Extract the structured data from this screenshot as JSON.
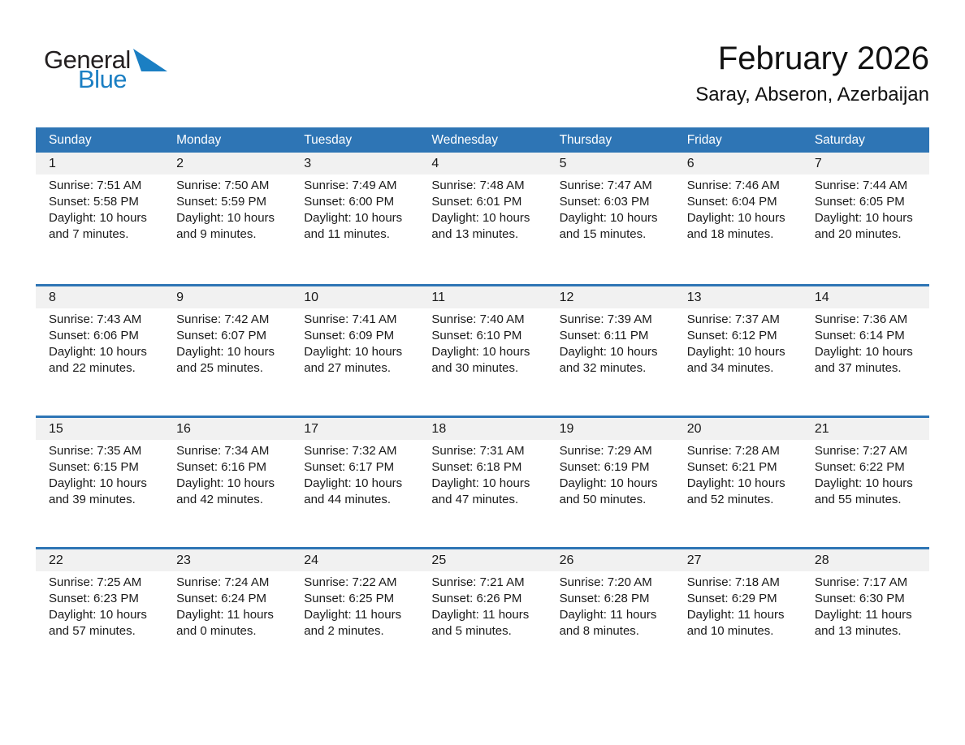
{
  "brand": {
    "part1": "General",
    "part2": "Blue"
  },
  "header": {
    "title": "February 2026",
    "location": "Saray, Abseron, Azerbaijan"
  },
  "weekdays": [
    "Sunday",
    "Monday",
    "Tuesday",
    "Wednesday",
    "Thursday",
    "Friday",
    "Saturday"
  ],
  "labels": {
    "sunrise": "Sunrise:",
    "sunset": "Sunset:",
    "daylight": "Daylight:",
    "hours": "hours",
    "and": "and",
    "minutes": "minutes."
  },
  "colors": {
    "header_bg": "#2e75b5",
    "separator": "#2e75b5",
    "band_bg": "#f1f1f1",
    "brand_blue": "#1b7fc3"
  },
  "weeks": [
    [
      {
        "day": 1,
        "sunrise": "7:51 AM",
        "sunset": "5:58 PM",
        "daylight_hours": 10,
        "daylight_minutes": 7
      },
      {
        "day": 2,
        "sunrise": "7:50 AM",
        "sunset": "5:59 PM",
        "daylight_hours": 10,
        "daylight_minutes": 9
      },
      {
        "day": 3,
        "sunrise": "7:49 AM",
        "sunset": "6:00 PM",
        "daylight_hours": 10,
        "daylight_minutes": 11
      },
      {
        "day": 4,
        "sunrise": "7:48 AM",
        "sunset": "6:01 PM",
        "daylight_hours": 10,
        "daylight_minutes": 13
      },
      {
        "day": 5,
        "sunrise": "7:47 AM",
        "sunset": "6:03 PM",
        "daylight_hours": 10,
        "daylight_minutes": 15
      },
      {
        "day": 6,
        "sunrise": "7:46 AM",
        "sunset": "6:04 PM",
        "daylight_hours": 10,
        "daylight_minutes": 18
      },
      {
        "day": 7,
        "sunrise": "7:44 AM",
        "sunset": "6:05 PM",
        "daylight_hours": 10,
        "daylight_minutes": 20
      }
    ],
    [
      {
        "day": 8,
        "sunrise": "7:43 AM",
        "sunset": "6:06 PM",
        "daylight_hours": 10,
        "daylight_minutes": 22
      },
      {
        "day": 9,
        "sunrise": "7:42 AM",
        "sunset": "6:07 PM",
        "daylight_hours": 10,
        "daylight_minutes": 25
      },
      {
        "day": 10,
        "sunrise": "7:41 AM",
        "sunset": "6:09 PM",
        "daylight_hours": 10,
        "daylight_minutes": 27
      },
      {
        "day": 11,
        "sunrise": "7:40 AM",
        "sunset": "6:10 PM",
        "daylight_hours": 10,
        "daylight_minutes": 30
      },
      {
        "day": 12,
        "sunrise": "7:39 AM",
        "sunset": "6:11 PM",
        "daylight_hours": 10,
        "daylight_minutes": 32
      },
      {
        "day": 13,
        "sunrise": "7:37 AM",
        "sunset": "6:12 PM",
        "daylight_hours": 10,
        "daylight_minutes": 34
      },
      {
        "day": 14,
        "sunrise": "7:36 AM",
        "sunset": "6:14 PM",
        "daylight_hours": 10,
        "daylight_minutes": 37
      }
    ],
    [
      {
        "day": 15,
        "sunrise": "7:35 AM",
        "sunset": "6:15 PM",
        "daylight_hours": 10,
        "daylight_minutes": 39
      },
      {
        "day": 16,
        "sunrise": "7:34 AM",
        "sunset": "6:16 PM",
        "daylight_hours": 10,
        "daylight_minutes": 42
      },
      {
        "day": 17,
        "sunrise": "7:32 AM",
        "sunset": "6:17 PM",
        "daylight_hours": 10,
        "daylight_minutes": 44
      },
      {
        "day": 18,
        "sunrise": "7:31 AM",
        "sunset": "6:18 PM",
        "daylight_hours": 10,
        "daylight_minutes": 47
      },
      {
        "day": 19,
        "sunrise": "7:29 AM",
        "sunset": "6:19 PM",
        "daylight_hours": 10,
        "daylight_minutes": 50
      },
      {
        "day": 20,
        "sunrise": "7:28 AM",
        "sunset": "6:21 PM",
        "daylight_hours": 10,
        "daylight_minutes": 52
      },
      {
        "day": 21,
        "sunrise": "7:27 AM",
        "sunset": "6:22 PM",
        "daylight_hours": 10,
        "daylight_minutes": 55
      }
    ],
    [
      {
        "day": 22,
        "sunrise": "7:25 AM",
        "sunset": "6:23 PM",
        "daylight_hours": 10,
        "daylight_minutes": 57
      },
      {
        "day": 23,
        "sunrise": "7:24 AM",
        "sunset": "6:24 PM",
        "daylight_hours": 11,
        "daylight_minutes": 0
      },
      {
        "day": 24,
        "sunrise": "7:22 AM",
        "sunset": "6:25 PM",
        "daylight_hours": 11,
        "daylight_minutes": 2
      },
      {
        "day": 25,
        "sunrise": "7:21 AM",
        "sunset": "6:26 PM",
        "daylight_hours": 11,
        "daylight_minutes": 5
      },
      {
        "day": 26,
        "sunrise": "7:20 AM",
        "sunset": "6:28 PM",
        "daylight_hours": 11,
        "daylight_minutes": 8
      },
      {
        "day": 27,
        "sunrise": "7:18 AM",
        "sunset": "6:29 PM",
        "daylight_hours": 11,
        "daylight_minutes": 10
      },
      {
        "day": 28,
        "sunrise": "7:17 AM",
        "sunset": "6:30 PM",
        "daylight_hours": 11,
        "daylight_minutes": 13
      }
    ]
  ]
}
